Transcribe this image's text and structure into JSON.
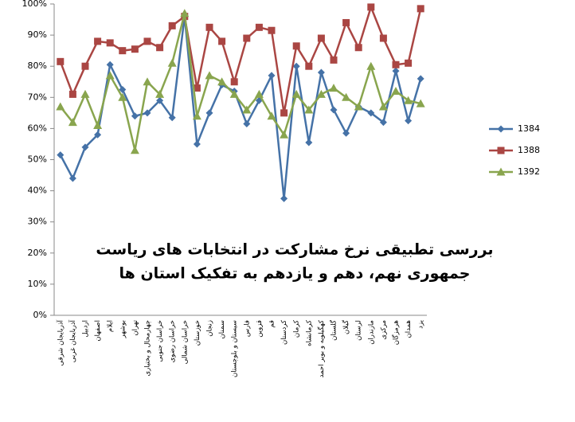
{
  "chart_data": {
    "type": "line",
    "title": [
      "بررسی تطبیقی نرخ مشارکت  در انتخابات های ریاست",
      "جمهوری نهم، دهم و یازدهم به تفکیک استان ها"
    ],
    "categories": [
      "آذربایجان شرقی",
      "آذربایجان غربی",
      "اردبیل",
      "اصفهان",
      "ایلام",
      "بوشهر",
      "تهران",
      "چهارمحال و بختیاری",
      "خراسان جنوبی",
      "خراسان رضوی",
      "خراسان شمالی",
      "خوزستان",
      "زنجان",
      "سمنان",
      "سیستان و بلوچستان",
      "فارس",
      "قزوین",
      "قم",
      "کردستان",
      "کرمان",
      "کرمانشاه",
      "کهگیلویه و بویر احمد",
      "گلستان",
      "گیلان",
      "لرستان",
      "مازندران",
      "مرکزی",
      "هرمزگان",
      "همدان",
      "یزد"
    ],
    "series": [
      {
        "name": "1384",
        "color": "#4572a7",
        "marker": "diamond",
        "values": [
          51.5,
          44,
          54,
          58,
          80.5,
          72.5,
          64,
          65,
          69,
          63.5,
          96,
          55,
          65,
          74,
          72,
          61.5,
          69,
          77,
          37.5,
          80,
          55.5,
          78,
          66,
          58.5,
          67,
          65,
          62,
          78.5,
          62.5,
          76
        ]
      },
      {
        "name": "1388",
        "color": "#aa4643",
        "marker": "square",
        "values": [
          81.5,
          71,
          80,
          88,
          87.5,
          85,
          85.5,
          88,
          86,
          93,
          96,
          73,
          92.5,
          88,
          75,
          89,
          92.5,
          91.5,
          65,
          86.5,
          80,
          89,
          82,
          94,
          86,
          99,
          89,
          80.5,
          81,
          98.5
        ]
      },
      {
        "name": "1392",
        "color": "#89a54e",
        "marker": "triangle",
        "values": [
          67,
          62,
          71,
          61,
          77,
          70,
          53,
          75,
          71,
          81,
          97,
          64,
          77,
          75,
          71,
          66,
          71,
          64,
          58,
          71,
          66,
          71,
          73,
          70,
          67,
          80,
          67,
          72,
          69,
          68
        ]
      }
    ],
    "ylim": [
      0,
      100
    ],
    "yticks": [
      {
        "value": 0,
        "label": "0%"
      },
      {
        "value": 10,
        "label": "10%"
      },
      {
        "value": 20,
        "label": "20%"
      },
      {
        "value": 30,
        "label": "30%"
      },
      {
        "value": 40,
        "label": "40%"
      },
      {
        "value": 50,
        "label": "50%"
      },
      {
        "value": 60,
        "label": "60%"
      },
      {
        "value": 70,
        "label": "70%"
      },
      {
        "value": 80,
        "label": "80%"
      },
      {
        "value": 90,
        "label": "90%"
      },
      {
        "value": 100,
        "label": "100%"
      }
    ],
    "grid": false,
    "legend": "right"
  }
}
